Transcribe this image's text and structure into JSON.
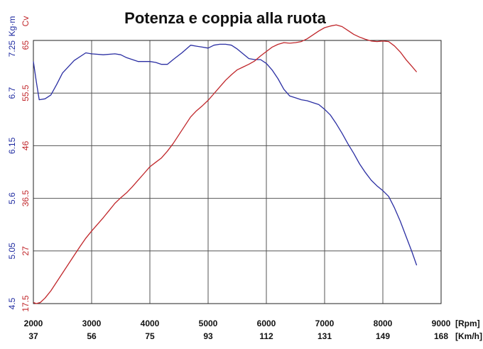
{
  "chart_data": {
    "type": "line",
    "title": "Potenza e coppia alla ruota",
    "x_axis": {
      "unit_rpm": "[Rpm]",
      "unit_speed": "[Km/h]",
      "rpm_ticks": [
        "2000",
        "3000",
        "4000",
        "5000",
        "6000",
        "7000",
        "8000",
        "9000"
      ],
      "speed_ticks": [
        "37",
        "56",
        "75",
        "93",
        "112",
        "131",
        "149",
        "168"
      ],
      "range": [
        2000,
        9000
      ]
    },
    "y_left_torque": {
      "unit": "Kg·m",
      "ticks": [
        "4.5",
        "5.05",
        "5.6",
        "6.15",
        "6.7",
        "7.25"
      ],
      "range": [
        4.5,
        7.25
      ]
    },
    "y_left_power": {
      "unit": "Cv",
      "ticks": [
        "17.5",
        "27",
        "36.5",
        "46",
        "55.5",
        "65"
      ],
      "range": [
        17.5,
        65
      ]
    },
    "grid": true,
    "series": [
      {
        "name": "Kg·m",
        "axis": "torque",
        "color": "#2b2fa3",
        "x": [
          2000,
          2050,
          2100,
          2200,
          2300,
          2400,
          2500,
          2700,
          2900,
          3000,
          3200,
          3400,
          3500,
          3600,
          3700,
          3800,
          4000,
          4100,
          4200,
          4300,
          4400,
          4550,
          4700,
          4800,
          4900,
          5000,
          5100,
          5200,
          5300,
          5400,
          5500,
          5600,
          5700,
          5800,
          5900,
          6000,
          6100,
          6200,
          6300,
          6400,
          6500,
          6600,
          6700,
          6800,
          6900,
          7000,
          7100,
          7200,
          7300,
          7400,
          7500,
          7600,
          7700,
          7800,
          7900,
          8000,
          8100,
          8200,
          8300,
          8400,
          8500,
          8580
        ],
        "values": [
          7.03,
          6.82,
          6.63,
          6.64,
          6.68,
          6.79,
          6.91,
          7.04,
          7.12,
          7.11,
          7.1,
          7.11,
          7.1,
          7.07,
          7.05,
          7.03,
          7.03,
          7.02,
          7.0,
          7.0,
          7.05,
          7.12,
          7.2,
          7.19,
          7.18,
          7.17,
          7.2,
          7.21,
          7.21,
          7.2,
          7.16,
          7.11,
          7.06,
          7.05,
          7.05,
          7.01,
          6.94,
          6.85,
          6.74,
          6.67,
          6.65,
          6.63,
          6.62,
          6.6,
          6.58,
          6.53,
          6.47,
          6.38,
          6.28,
          6.17,
          6.07,
          5.96,
          5.87,
          5.79,
          5.73,
          5.68,
          5.62,
          5.5,
          5.36,
          5.2,
          5.04,
          4.9
        ]
      },
      {
        "name": "Cv",
        "axis": "power",
        "color": "#c0262a",
        "x": [
          2000,
          2050,
          2120,
          2200,
          2300,
          2400,
          2500,
          2600,
          2700,
          2800,
          2900,
          3000,
          3100,
          3200,
          3300,
          3400,
          3500,
          3600,
          3700,
          3800,
          3900,
          4000,
          4100,
          4200,
          4300,
          4400,
          4500,
          4600,
          4700,
          4800,
          4900,
          5000,
          5100,
          5200,
          5300,
          5400,
          5500,
          5600,
          5700,
          5800,
          5900,
          6000,
          6100,
          6200,
          6300,
          6400,
          6500,
          6600,
          6700,
          6800,
          6900,
          7000,
          7100,
          7200,
          7300,
          7400,
          7500,
          7600,
          7700,
          7800,
          7900,
          8000,
          8100,
          8200,
          8300,
          8400,
          8500,
          8580
        ],
        "values": [
          17.7,
          17.5,
          17.7,
          18.5,
          19.8,
          21.4,
          23.0,
          24.6,
          26.2,
          27.8,
          29.3,
          30.6,
          31.8,
          33.0,
          34.3,
          35.6,
          36.6,
          37.5,
          38.6,
          39.8,
          41.0,
          42.2,
          43.0,
          43.8,
          45.0,
          46.4,
          48.0,
          49.6,
          51.2,
          52.3,
          53.2,
          54.2,
          55.4,
          56.6,
          57.8,
          58.8,
          59.7,
          60.2,
          60.7,
          61.3,
          62.2,
          63.0,
          63.8,
          64.3,
          64.6,
          64.5,
          64.6,
          64.8,
          65.3,
          66.0,
          66.7,
          67.3,
          67.6,
          67.8,
          67.5,
          66.8,
          66.1,
          65.6,
          65.2,
          64.9,
          64.8,
          64.9,
          64.8,
          64.0,
          62.9,
          61.5,
          60.3,
          59.3
        ]
      }
    ]
  }
}
